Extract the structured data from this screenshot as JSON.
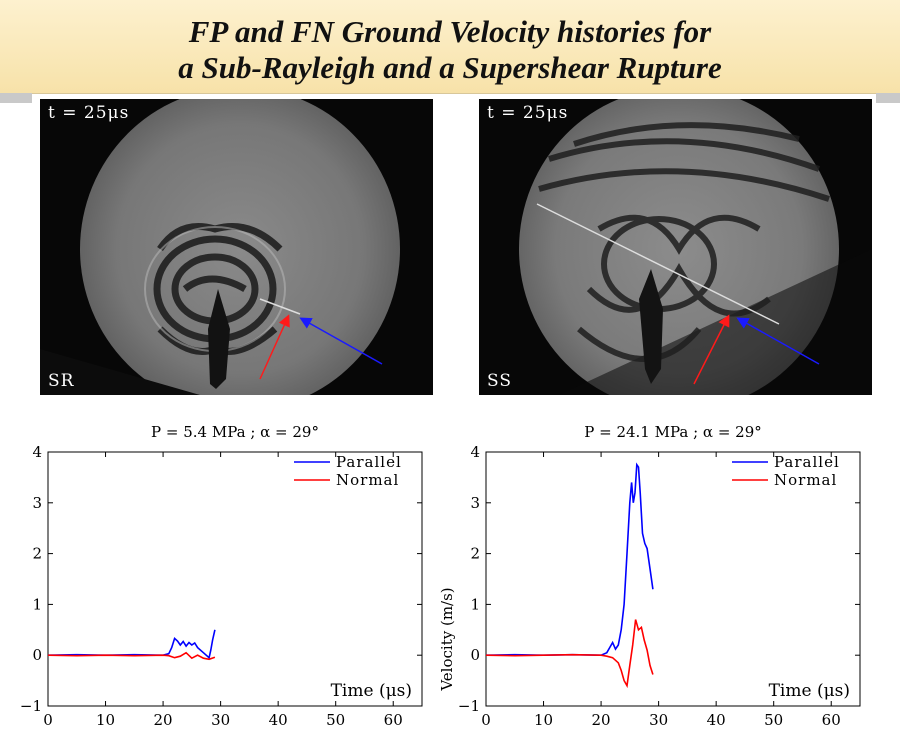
{
  "title": {
    "line1": "FP and FN Ground Velocity histories for",
    "line2": "a Sub-Rayleigh and a Supershear Rupture"
  },
  "photos": [
    {
      "time_label": "t = 25μs",
      "case_label": "SR"
    },
    {
      "time_label": "t = 25μs",
      "case_label": "SS"
    }
  ],
  "colors": {
    "parallel": "#0000ff",
    "normal": "#ff0000",
    "arrow_red": "#ff1a1a",
    "arrow_blue": "#1a1aff"
  },
  "chart_data": [
    {
      "type": "line",
      "title": "P = 5.4 MPa ; α = 29°",
      "xlabel": "Time (μs)",
      "ylabel": "",
      "xlim": [
        0,
        65
      ],
      "ylim": [
        -1,
        4
      ],
      "xticks": [
        "0",
        "10",
        "20",
        "30",
        "40",
        "50",
        "60"
      ],
      "yticks": [
        "−1",
        "0",
        "1",
        "2",
        "3",
        "4"
      ],
      "legend_position": "top-right",
      "series": [
        {
          "name": "Parallel",
          "color": "#0000ff",
          "x": [
            0,
            5,
            10,
            15,
            20,
            21,
            21.5,
            22,
            22.5,
            23,
            23.5,
            24,
            24.5,
            25,
            25.5,
            26,
            27,
            28,
            28.3,
            28.6,
            29
          ],
          "y": [
            0,
            0.01,
            0,
            0.01,
            0,
            0.03,
            0.15,
            0.33,
            0.28,
            0.2,
            0.27,
            0.18,
            0.25,
            0.2,
            0.24,
            0.15,
            0.05,
            -0.05,
            0.1,
            0.3,
            0.5
          ]
        },
        {
          "name": "Normal",
          "color": "#ff0000",
          "x": [
            0,
            5,
            10,
            15,
            20,
            21,
            22,
            23,
            24,
            25,
            26,
            27,
            28,
            29
          ],
          "y": [
            0,
            -0.01,
            0,
            -0.01,
            0,
            -0.01,
            -0.05,
            -0.02,
            0.05,
            -0.06,
            0.0,
            -0.06,
            -0.08,
            -0.04
          ]
        }
      ]
    },
    {
      "type": "line",
      "title": "P = 24.1 MPa ; α = 29°",
      "xlabel": "Time (μs)",
      "ylabel": "Velocity (m/s)",
      "xlim": [
        0,
        65
      ],
      "ylim": [
        -1,
        4
      ],
      "xticks": [
        "0",
        "10",
        "20",
        "30",
        "40",
        "50",
        "60"
      ],
      "yticks": [
        "−1",
        "0",
        "1",
        "2",
        "3",
        "4"
      ],
      "legend_position": "top-right",
      "series": [
        {
          "name": "Parallel",
          "color": "#0000ff",
          "x": [
            0,
            5,
            10,
            15,
            20,
            21,
            21.5,
            22,
            22.5,
            23,
            23.5,
            24,
            24.5,
            25,
            25.3,
            25.6,
            25.9,
            26.2,
            26.5,
            26.8,
            27.2,
            27.6,
            28,
            28.5,
            29
          ],
          "y": [
            0,
            0.01,
            0,
            0.01,
            0,
            0.05,
            0.15,
            0.25,
            0.12,
            0.2,
            0.5,
            1.0,
            2.0,
            3.0,
            3.4,
            3.0,
            3.2,
            3.75,
            3.7,
            3.2,
            2.4,
            2.2,
            2.1,
            1.7,
            1.3
          ]
        },
        {
          "name": "Normal",
          "color": "#ff0000",
          "x": [
            0,
            5,
            10,
            15,
            20,
            21,
            22,
            23,
            23.5,
            24,
            24.5,
            25,
            25.5,
            26,
            26.5,
            27,
            27.5,
            28,
            28.5,
            29
          ],
          "y": [
            0,
            -0.01,
            0,
            0.01,
            0,
            -0.02,
            -0.05,
            -0.15,
            -0.3,
            -0.5,
            -0.6,
            -0.2,
            0.2,
            0.7,
            0.5,
            0.55,
            0.3,
            0.1,
            -0.2,
            -0.38
          ]
        }
      ]
    }
  ]
}
